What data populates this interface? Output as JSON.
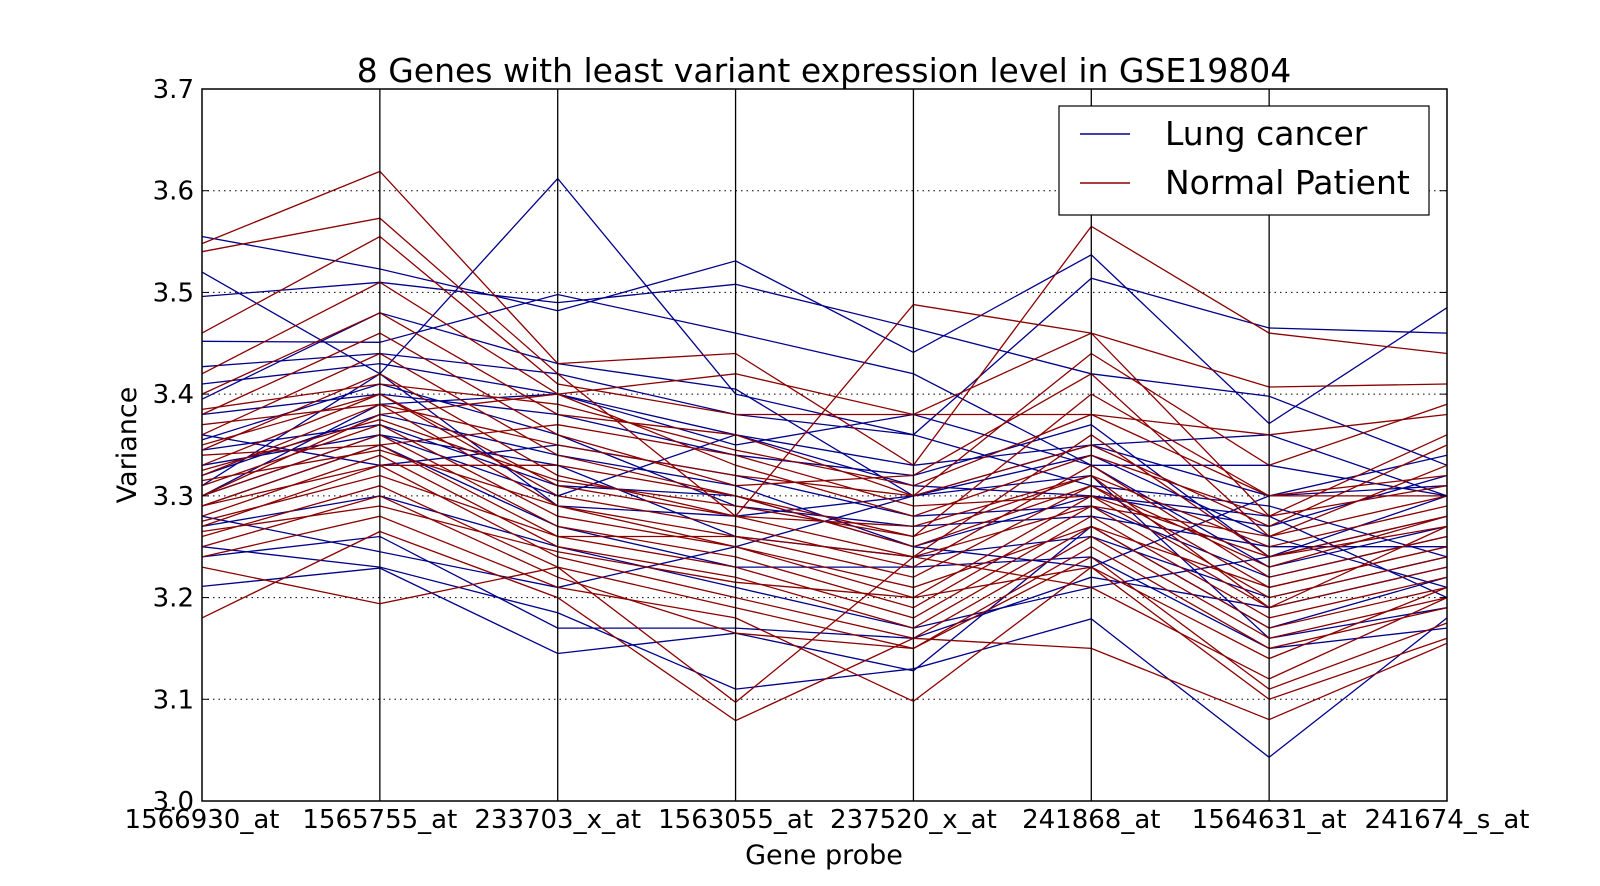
{
  "chart_data": {
    "type": "line",
    "title": "8 Genes with least variant expression level in GSE19804",
    "xlabel": "Gene probe",
    "ylabel": "Variance",
    "ylim": [
      3.0,
      3.7
    ],
    "yticks": [
      "3.0",
      "3.1",
      "3.2",
      "3.3",
      "3.4",
      "3.5",
      "3.6",
      "3.7"
    ],
    "categories": [
      "1566930_at",
      "1565755_at",
      "233703_x_at",
      "1563055_at",
      "237520_x_at",
      "241868_at",
      "1564631_at",
      "241674_s_at"
    ],
    "grid": "horizontal dotted; vertical solid at each category",
    "legend": {
      "position": "top-right",
      "entries": [
        {
          "label": "Lung cancer",
          "color": "#00008b"
        },
        {
          "label": "Normal Patient",
          "color": "#8b0000"
        }
      ]
    },
    "series": [
      {
        "group": "Lung cancer",
        "values": [
          3.555,
          3.523,
          3.482,
          3.531,
          3.441,
          3.537,
          3.371,
          3.485
        ]
      },
      {
        "group": "Lung cancer",
        "values": [
          3.52,
          3.42,
          3.612,
          3.4,
          3.36,
          3.514,
          3.465,
          3.46
        ]
      },
      {
        "group": "Lung cancer",
        "values": [
          3.496,
          3.51,
          3.49,
          3.508,
          3.465,
          3.42,
          3.398,
          3.33
        ]
      },
      {
        "group": "Lung cancer",
        "values": [
          3.452,
          3.451,
          3.498,
          3.46,
          3.42,
          3.33,
          3.33,
          3.3
        ]
      },
      {
        "group": "Lung cancer",
        "values": [
          3.427,
          3.44,
          3.42,
          3.38,
          3.36,
          3.31,
          3.29,
          3.24
        ]
      },
      {
        "group": "Lung cancer",
        "values": [
          3.395,
          3.48,
          3.43,
          3.405,
          3.3,
          3.34,
          3.26,
          3.21
        ]
      },
      {
        "group": "Lung cancer",
        "values": [
          3.38,
          3.4,
          3.38,
          3.34,
          3.32,
          3.37,
          3.24,
          3.3
        ]
      },
      {
        "group": "Lung cancer",
        "values": [
          3.36,
          3.33,
          3.35,
          3.32,
          3.28,
          3.29,
          3.22,
          3.26
        ]
      },
      {
        "group": "Lung cancer",
        "values": [
          3.345,
          3.37,
          3.31,
          3.3,
          3.25,
          3.3,
          3.27,
          3.32
        ]
      },
      {
        "group": "Lung cancer",
        "values": [
          3.33,
          3.36,
          3.33,
          3.26,
          3.24,
          3.26,
          3.2,
          3.24
        ]
      },
      {
        "group": "Lung cancer",
        "values": [
          3.31,
          3.42,
          3.29,
          3.28,
          3.3,
          3.32,
          3.16,
          3.19
        ]
      },
      {
        "group": "Lung cancer",
        "values": [
          3.29,
          3.35,
          3.27,
          3.23,
          3.23,
          3.24,
          3.15,
          3.17
        ]
      },
      {
        "group": "Lung cancer",
        "values": [
          3.27,
          3.3,
          3.25,
          3.21,
          3.17,
          3.21,
          3.24,
          3.28
        ]
      },
      {
        "group": "Lung cancer",
        "values": [
          3.25,
          3.23,
          3.185,
          3.11,
          3.13,
          3.179,
          3.043,
          3.18
        ]
      },
      {
        "group": "Lung cancer",
        "values": [
          3.24,
          3.26,
          3.17,
          3.17,
          3.16,
          3.22,
          3.19,
          3.23
        ]
      },
      {
        "group": "Lung cancer",
        "values": [
          3.211,
          3.229,
          3.145,
          3.165,
          3.128,
          3.27,
          3.17,
          3.22
        ]
      },
      {
        "group": "Lung cancer",
        "values": [
          3.3,
          3.39,
          3.4,
          3.36,
          3.33,
          3.35,
          3.3,
          3.34
        ]
      },
      {
        "group": "Lung cancer",
        "values": [
          3.355,
          3.41,
          3.36,
          3.29,
          3.27,
          3.28,
          3.25,
          3.25
        ]
      },
      {
        "group": "Lung cancer",
        "values": [
          3.32,
          3.38,
          3.34,
          3.31,
          3.25,
          3.23,
          3.3,
          3.31
        ]
      },
      {
        "group": "Lung cancer",
        "values": [
          3.28,
          3.245,
          3.21,
          3.25,
          3.3,
          3.35,
          3.36,
          3.3
        ]
      },
      {
        "group": "Lung cancer",
        "values": [
          3.41,
          3.43,
          3.4,
          3.35,
          3.38,
          3.33,
          3.23,
          3.27
        ]
      },
      {
        "group": "Lung cancer",
        "values": [
          3.3,
          3.36,
          3.3,
          3.36,
          3.31,
          3.3,
          3.28,
          3.2
        ]
      },
      {
        "group": "Normal Patient",
        "values": [
          3.548,
          3.619,
          3.43,
          3.44,
          3.33,
          3.565,
          3.46,
          3.44
        ]
      },
      {
        "group": "Normal Patient",
        "values": [
          3.54,
          3.573,
          3.42,
          3.28,
          3.488,
          3.46,
          3.407,
          3.41
        ]
      },
      {
        "group": "Normal Patient",
        "values": [
          3.46,
          3.555,
          3.41,
          3.38,
          3.38,
          3.38,
          3.36,
          3.38
        ]
      },
      {
        "group": "Normal Patient",
        "values": [
          3.42,
          3.51,
          3.4,
          3.42,
          3.38,
          3.46,
          3.28,
          3.36
        ]
      },
      {
        "group": "Normal Patient",
        "values": [
          3.4,
          3.48,
          3.38,
          3.36,
          3.3,
          3.44,
          3.33,
          3.39
        ]
      },
      {
        "group": "Normal Patient",
        "values": [
          3.38,
          3.46,
          3.36,
          3.31,
          3.32,
          3.42,
          3.26,
          3.33
        ]
      },
      {
        "group": "Normal Patient",
        "values": [
          3.36,
          3.44,
          3.34,
          3.3,
          3.26,
          3.4,
          3.3,
          3.3
        ]
      },
      {
        "group": "Normal Patient",
        "values": [
          3.345,
          3.42,
          3.32,
          3.28,
          3.24,
          3.36,
          3.24,
          3.28
        ]
      },
      {
        "group": "Normal Patient",
        "values": [
          3.33,
          3.4,
          3.3,
          3.27,
          3.23,
          3.33,
          3.22,
          3.26
        ]
      },
      {
        "group": "Normal Patient",
        "values": [
          3.32,
          3.39,
          3.29,
          3.26,
          3.22,
          3.31,
          3.21,
          3.25
        ]
      },
      {
        "group": "Normal Patient",
        "values": [
          3.31,
          3.37,
          3.28,
          3.25,
          3.2,
          3.3,
          3.2,
          3.24
        ]
      },
      {
        "group": "Normal Patient",
        "values": [
          3.3,
          3.36,
          3.27,
          3.24,
          3.19,
          3.29,
          3.19,
          3.23
        ]
      },
      {
        "group": "Normal Patient",
        "values": [
          3.29,
          3.35,
          3.26,
          3.23,
          3.18,
          3.28,
          3.18,
          3.22
        ]
      },
      {
        "group": "Normal Patient",
        "values": [
          3.28,
          3.34,
          3.25,
          3.22,
          3.17,
          3.27,
          3.17,
          3.21
        ]
      },
      {
        "group": "Normal Patient",
        "values": [
          3.27,
          3.33,
          3.24,
          3.2,
          3.16,
          3.26,
          3.16,
          3.2
        ]
      },
      {
        "group": "Normal Patient",
        "values": [
          3.26,
          3.31,
          3.23,
          3.19,
          3.15,
          3.25,
          3.15,
          3.19
        ]
      },
      {
        "group": "Normal Patient",
        "values": [
          3.25,
          3.3,
          3.22,
          3.165,
          3.15,
          3.24,
          3.11,
          3.175
        ]
      },
      {
        "group": "Normal Patient",
        "values": [
          3.24,
          3.28,
          3.21,
          3.18,
          3.098,
          3.23,
          3.1,
          3.16
        ]
      },
      {
        "group": "Normal Patient",
        "values": [
          3.18,
          3.265,
          3.2,
          3.079,
          3.16,
          3.15,
          3.08,
          3.155
        ]
      },
      {
        "group": "Normal Patient",
        "values": [
          3.23,
          3.194,
          3.23,
          3.097,
          3.24,
          3.21,
          3.12,
          3.2
        ]
      },
      {
        "group": "Normal Patient",
        "values": [
          3.3,
          3.38,
          3.4,
          3.33,
          3.28,
          3.34,
          3.28,
          3.31
        ]
      },
      {
        "group": "Normal Patient",
        "values": [
          3.35,
          3.4,
          3.31,
          3.28,
          3.27,
          3.32,
          3.25,
          3.29
        ]
      },
      {
        "group": "Normal Patient",
        "values": [
          3.34,
          3.35,
          3.37,
          3.34,
          3.29,
          3.3,
          3.24,
          3.27
        ]
      },
      {
        "group": "Normal Patient",
        "values": [
          3.29,
          3.33,
          3.33,
          3.3,
          3.25,
          3.31,
          3.23,
          3.28
        ]
      },
      {
        "group": "Normal Patient",
        "values": [
          3.37,
          3.39,
          3.35,
          3.32,
          3.3,
          3.35,
          3.27,
          3.35
        ]
      },
      {
        "group": "Normal Patient",
        "values": [
          3.275,
          3.32,
          3.26,
          3.26,
          3.24,
          3.29,
          3.26,
          3.3
        ]
      },
      {
        "group": "Normal Patient",
        "values": [
          3.315,
          3.345,
          3.29,
          3.25,
          3.21,
          3.27,
          3.21,
          3.25
        ]
      },
      {
        "group": "Normal Patient",
        "values": [
          3.325,
          3.375,
          3.315,
          3.29,
          3.26,
          3.32,
          3.19,
          3.27
        ]
      },
      {
        "group": "Normal Patient",
        "values": [
          3.385,
          3.41,
          3.39,
          3.345,
          3.31,
          3.38,
          3.3,
          3.32
        ]
      },
      {
        "group": "Normal Patient",
        "values": [
          3.265,
          3.29,
          3.245,
          3.215,
          3.2,
          3.23,
          3.14,
          3.21
        ]
      }
    ]
  }
}
